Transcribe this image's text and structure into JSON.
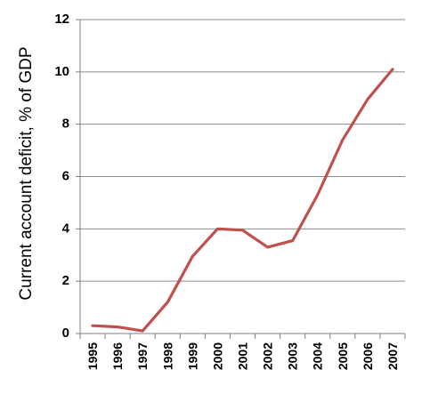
{
  "chart_data": {
    "type": "line",
    "title": "",
    "xlabel": "",
    "ylabel": "Current account deficit, % of GDP",
    "ylim": [
      0,
      12
    ],
    "y_ticks": [
      "0",
      "2",
      "4",
      "6",
      "8",
      "10",
      "12"
    ],
    "grid": "horizontal",
    "legend": "none",
    "categories": [
      "1995",
      "1996",
      "1997",
      "1998",
      "1999",
      "2000",
      "2001",
      "2002",
      "2003",
      "2004",
      "2005",
      "2006",
      "2007"
    ],
    "series": [
      {
        "values": [
          0.3,
          0.25,
          0.1,
          1.2,
          2.95,
          4.0,
          3.95,
          3.3,
          3.55,
          5.3,
          7.4,
          8.95,
          10.1
        ],
        "color": "#C0504D"
      }
    ]
  }
}
